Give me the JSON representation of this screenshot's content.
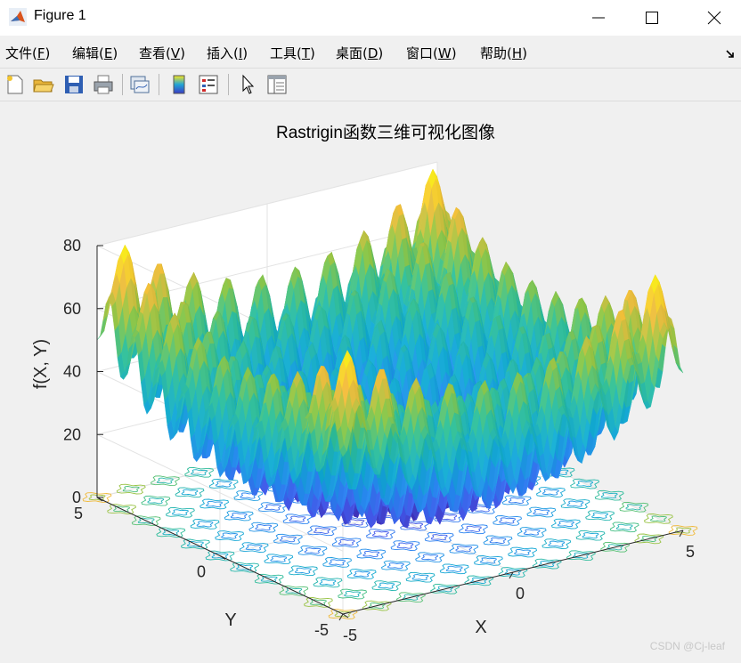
{
  "window": {
    "title": "Figure 1"
  },
  "menu": [
    {
      "label": "文件(",
      "key": "F",
      "end": ")"
    },
    {
      "label": "编辑(",
      "key": "E",
      "end": ")"
    },
    {
      "label": "查看(",
      "key": "V",
      "end": ")"
    },
    {
      "label": "插入(",
      "key": "I",
      "end": ")"
    },
    {
      "label": "工具(",
      "key": "T",
      "end": ")"
    },
    {
      "label": "桌面(",
      "key": "D",
      "end": ")"
    },
    {
      "label": "窗口(",
      "key": "W",
      "end": ")"
    },
    {
      "label": "帮助(",
      "key": "H",
      "end": ")"
    }
  ],
  "toolbar": [
    "new-figure-icon",
    "open-file-icon",
    "save-icon",
    "print-icon",
    "link-plot-icon",
    "colorbar-icon",
    "legend-icon",
    "pointer-icon",
    "property-inspector-icon"
  ],
  "chart_data": {
    "type": "surface3d",
    "function": "Rastrigin",
    "title": "Rastrigin函数三维可视化图像",
    "xlabel": "X",
    "ylabel": "Y",
    "zlabel": "f(X, Y)",
    "x_ticks": [
      "-5",
      "0",
      "5"
    ],
    "y_ticks": [
      "-5",
      "0",
      "5"
    ],
    "z_ticks": [
      "0",
      "20",
      "40",
      "60",
      "80"
    ],
    "xlim": [
      -5,
      5
    ],
    "ylim": [
      -5,
      5
    ],
    "zlim": [
      0,
      80
    ],
    "colormap": "parula",
    "contour_base": true
  },
  "watermark": "CSDN @Cj-leaf"
}
